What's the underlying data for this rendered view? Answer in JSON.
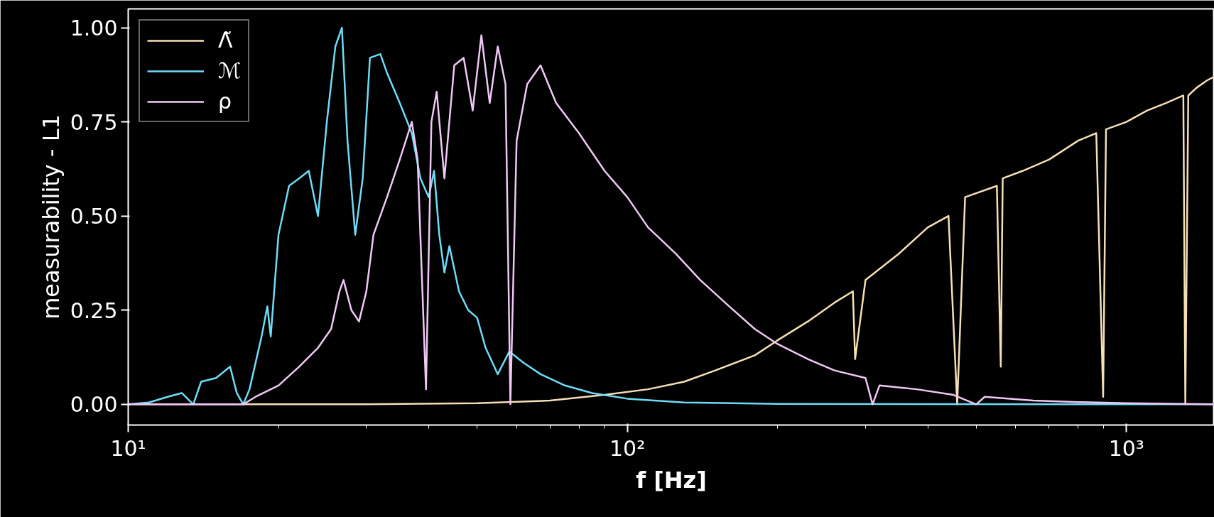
{
  "chart_data": {
    "type": "line",
    "xlabel": "f [Hz]",
    "ylabel": "measurability - L1",
    "log": "x",
    "xlim": [
      10,
      1500
    ],
    "ylim": [
      -0.055,
      1.05
    ],
    "xticks": [
      {
        "value": 10,
        "label": "10¹"
      },
      {
        "value": 100,
        "label": "10²"
      },
      {
        "value": 1000,
        "label": "10³"
      }
    ],
    "yticks": [
      {
        "value": 0,
        "label": "0.00"
      },
      {
        "value": 0.25,
        "label": "0.25"
      },
      {
        "value": 0.5,
        "label": "0.50"
      },
      {
        "value": 0.75,
        "label": "0.75"
      },
      {
        "value": 1,
        "label": "1.00"
      }
    ],
    "grid": false,
    "legend": "top left",
    "line_style": "solid",
    "marker": "none",
    "series": [
      {
        "name": "Λ̃",
        "color": "#f5dfb5",
        "x": [
          10,
          30,
          50,
          70,
          90,
          110,
          130,
          150,
          180,
          200,
          230,
          260,
          283,
          286,
          300,
          350,
          400,
          440,
          458,
          475,
          550,
          560,
          565,
          620,
          700,
          800,
          870,
          898,
          910,
          1000,
          1100,
          1200,
          1300,
          1312,
          1330,
          1380,
          1450,
          1500
        ],
        "values": [
          0,
          0,
          0.003,
          0.01,
          0.025,
          0.04,
          0.06,
          0.09,
          0.13,
          0.17,
          0.22,
          0.27,
          0.3,
          0.12,
          0.33,
          0.4,
          0.47,
          0.5,
          0.0,
          0.55,
          0.58,
          0.1,
          0.6,
          0.62,
          0.65,
          0.7,
          0.72,
          0.02,
          0.73,
          0.75,
          0.78,
          0.8,
          0.82,
          0.0,
          0.82,
          0.84,
          0.86,
          0.87
        ]
      },
      {
        "name": "ℳ",
        "color": "#6fdcf7",
        "x": [
          10,
          11,
          12,
          12.8,
          13.5,
          14,
          15,
          16,
          16.5,
          17,
          17.5,
          18.5,
          19,
          19.3,
          20,
          21,
          22,
          23,
          24,
          25,
          26,
          26.8,
          27.5,
          28.5,
          29.5,
          30.5,
          32,
          33,
          35,
          37,
          38.5,
          40,
          41,
          42,
          43,
          44,
          46,
          48,
          50,
          52,
          55,
          58,
          62,
          67,
          75,
          85,
          100,
          130,
          200,
          1500
        ],
        "values": [
          0,
          0.005,
          0.02,
          0.03,
          0.0,
          0.06,
          0.07,
          0.1,
          0.03,
          0.0,
          0.04,
          0.18,
          0.26,
          0.18,
          0.45,
          0.58,
          0.6,
          0.62,
          0.5,
          0.75,
          0.95,
          1.0,
          0.7,
          0.45,
          0.6,
          0.92,
          0.93,
          0.88,
          0.8,
          0.72,
          0.6,
          0.55,
          0.62,
          0.45,
          0.35,
          0.42,
          0.3,
          0.25,
          0.23,
          0.15,
          0.08,
          0.14,
          0.11,
          0.08,
          0.05,
          0.03,
          0.015,
          0.005,
          0.001,
          0
        ]
      },
      {
        "name": "ρ",
        "color": "#f0c8f5",
        "x": [
          10,
          17,
          18,
          20,
          22,
          24,
          25.5,
          26.5,
          27,
          28,
          29,
          30,
          31,
          33,
          35,
          37,
          38,
          39.5,
          40.5,
          41.5,
          43,
          45,
          47,
          49,
          51,
          53,
          55,
          57,
          58.3,
          60,
          63,
          67,
          72,
          80,
          90,
          100,
          110,
          125,
          140,
          160,
          180,
          200,
          230,
          260,
          300,
          310,
          320,
          380,
          450,
          500,
          520,
          650,
          800,
          1000,
          1500
        ],
        "values": [
          0,
          0,
          0.02,
          0.05,
          0.1,
          0.15,
          0.2,
          0.3,
          0.33,
          0.25,
          0.22,
          0.3,
          0.45,
          0.55,
          0.65,
          0.75,
          0.65,
          0.04,
          0.75,
          0.83,
          0.6,
          0.9,
          0.92,
          0.78,
          0.98,
          0.8,
          0.95,
          0.85,
          0.0,
          0.7,
          0.85,
          0.9,
          0.8,
          0.72,
          0.62,
          0.55,
          0.47,
          0.4,
          0.33,
          0.26,
          0.2,
          0.16,
          0.12,
          0.09,
          0.07,
          0.0,
          0.05,
          0.04,
          0.025,
          0.0,
          0.02,
          0.01,
          0.006,
          0.003,
          0
        ]
      }
    ]
  }
}
